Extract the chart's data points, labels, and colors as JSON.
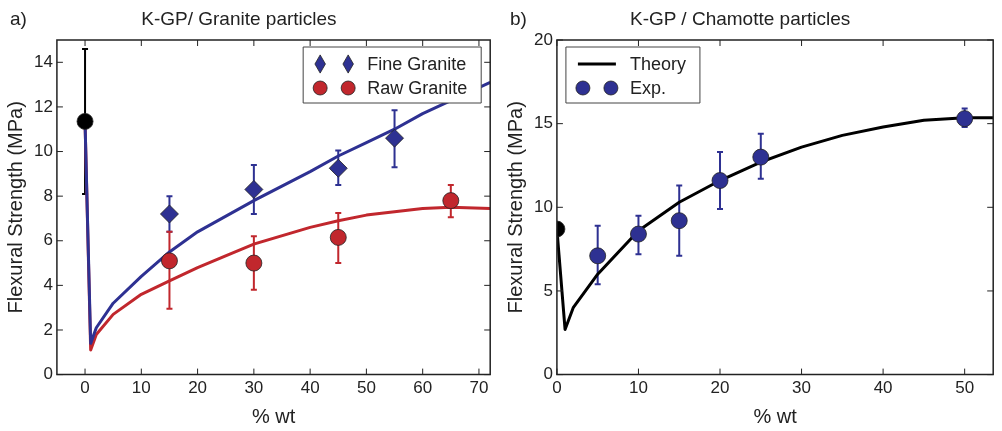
{
  "chart_data": [
    {
      "type": "scatter",
      "title": "K-GP/ Granite particles",
      "xlabel": "% wt",
      "ylabel": "Flexural Strength (MPa)",
      "annotations": [
        "a)"
      ],
      "xlim": [
        -5,
        72
      ],
      "ylim": [
        0,
        15
      ],
      "xticks": [
        0,
        10,
        20,
        30,
        40,
        50,
        60,
        70
      ],
      "yticks": [
        0,
        2,
        4,
        6,
        8,
        10,
        12,
        14
      ],
      "legend": "top right",
      "series": [
        {
          "type": "line",
          "color": "#2e3192",
          "marker": "none",
          "x": [
            0,
            1,
            2,
            5,
            10,
            15,
            20,
            30,
            40,
            45,
            50,
            55,
            60,
            72
          ],
          "values": [
            11.3,
            1.4,
            2.1,
            3.2,
            4.4,
            5.5,
            6.4,
            7.8,
            9.1,
            9.8,
            10.4,
            11.0,
            11.7,
            13.1
          ]
        },
        {
          "type": "line",
          "color": "#c1272d",
          "marker": "none",
          "x": [
            0,
            1,
            2,
            5,
            10,
            15,
            20,
            30,
            40,
            45,
            50,
            60,
            65,
            72
          ],
          "values": [
            11.3,
            1.1,
            1.8,
            2.7,
            3.6,
            4.2,
            4.8,
            5.85,
            6.6,
            6.9,
            7.15,
            7.45,
            7.5,
            7.45
          ]
        },
        {
          "type": "scatter",
          "color": "#000000",
          "marker": "circle",
          "x": [
            0
          ],
          "values": [
            11.35
          ],
          "errors": [
            [
              8.1,
              14.6
            ]
          ]
        },
        {
          "type": "scatter",
          "name": "Fine Granite",
          "color": "#2e3192",
          "marker": "diamond",
          "x": [
            15,
            30,
            45,
            55
          ],
          "values": [
            7.2,
            8.3,
            9.25,
            10.6
          ],
          "errors": [
            [
              6.4,
              8.0
            ],
            [
              7.2,
              9.4
            ],
            [
              8.5,
              10.05
            ],
            [
              9.3,
              11.85
            ]
          ]
        },
        {
          "type": "scatter",
          "name": "Raw Granite",
          "color": "#c1272d",
          "marker": "circle",
          "x": [
            15,
            30,
            45,
            65
          ],
          "values": [
            5.1,
            5.0,
            6.15,
            7.8
          ],
          "errors": [
            [
              2.95,
              6.4
            ],
            [
              3.8,
              6.2
            ],
            [
              5.0,
              7.25
            ],
            [
              7.05,
              8.5
            ]
          ]
        }
      ]
    },
    {
      "type": "scatter",
      "title": "K-GP / Chamotte particles",
      "xlabel": "% wt",
      "ylabel": "Flexural Strength (MPa)",
      "annotations": [
        "b)"
      ],
      "xlim": [
        0,
        53.5
      ],
      "ylim": [
        0,
        20
      ],
      "xticks": [
        0,
        10,
        20,
        30,
        40,
        50
      ],
      "yticks": [
        0,
        5,
        10,
        15,
        20
      ],
      "legend": "top left",
      "series": [
        {
          "type": "line",
          "name": "Theory",
          "color": "#000000",
          "marker": "none",
          "x": [
            0,
            1,
            2,
            5,
            10,
            15,
            20,
            25,
            30,
            35,
            40,
            45,
            50,
            53.5
          ],
          "values": [
            8.7,
            2.7,
            4.0,
            6.0,
            8.6,
            10.3,
            11.6,
            12.7,
            13.6,
            14.3,
            14.8,
            15.2,
            15.35,
            15.35
          ]
        },
        {
          "type": "scatter",
          "color": "#000000",
          "marker": "circle",
          "x": [
            0
          ],
          "values": [
            8.7
          ]
        },
        {
          "type": "scatter",
          "name": "Exp.",
          "color": "#2e3192",
          "marker": "circle",
          "x": [
            5,
            10,
            15,
            20,
            25,
            50
          ],
          "values": [
            7.1,
            8.4,
            9.2,
            11.6,
            13.0,
            15.3
          ],
          "errors": [
            [
              5.4,
              8.9
            ],
            [
              7.2,
              9.5
            ],
            [
              7.1,
              11.3
            ],
            [
              9.9,
              13.3
            ],
            [
              11.7,
              14.4
            ],
            [
              14.8,
              15.9
            ]
          ]
        }
      ]
    }
  ]
}
